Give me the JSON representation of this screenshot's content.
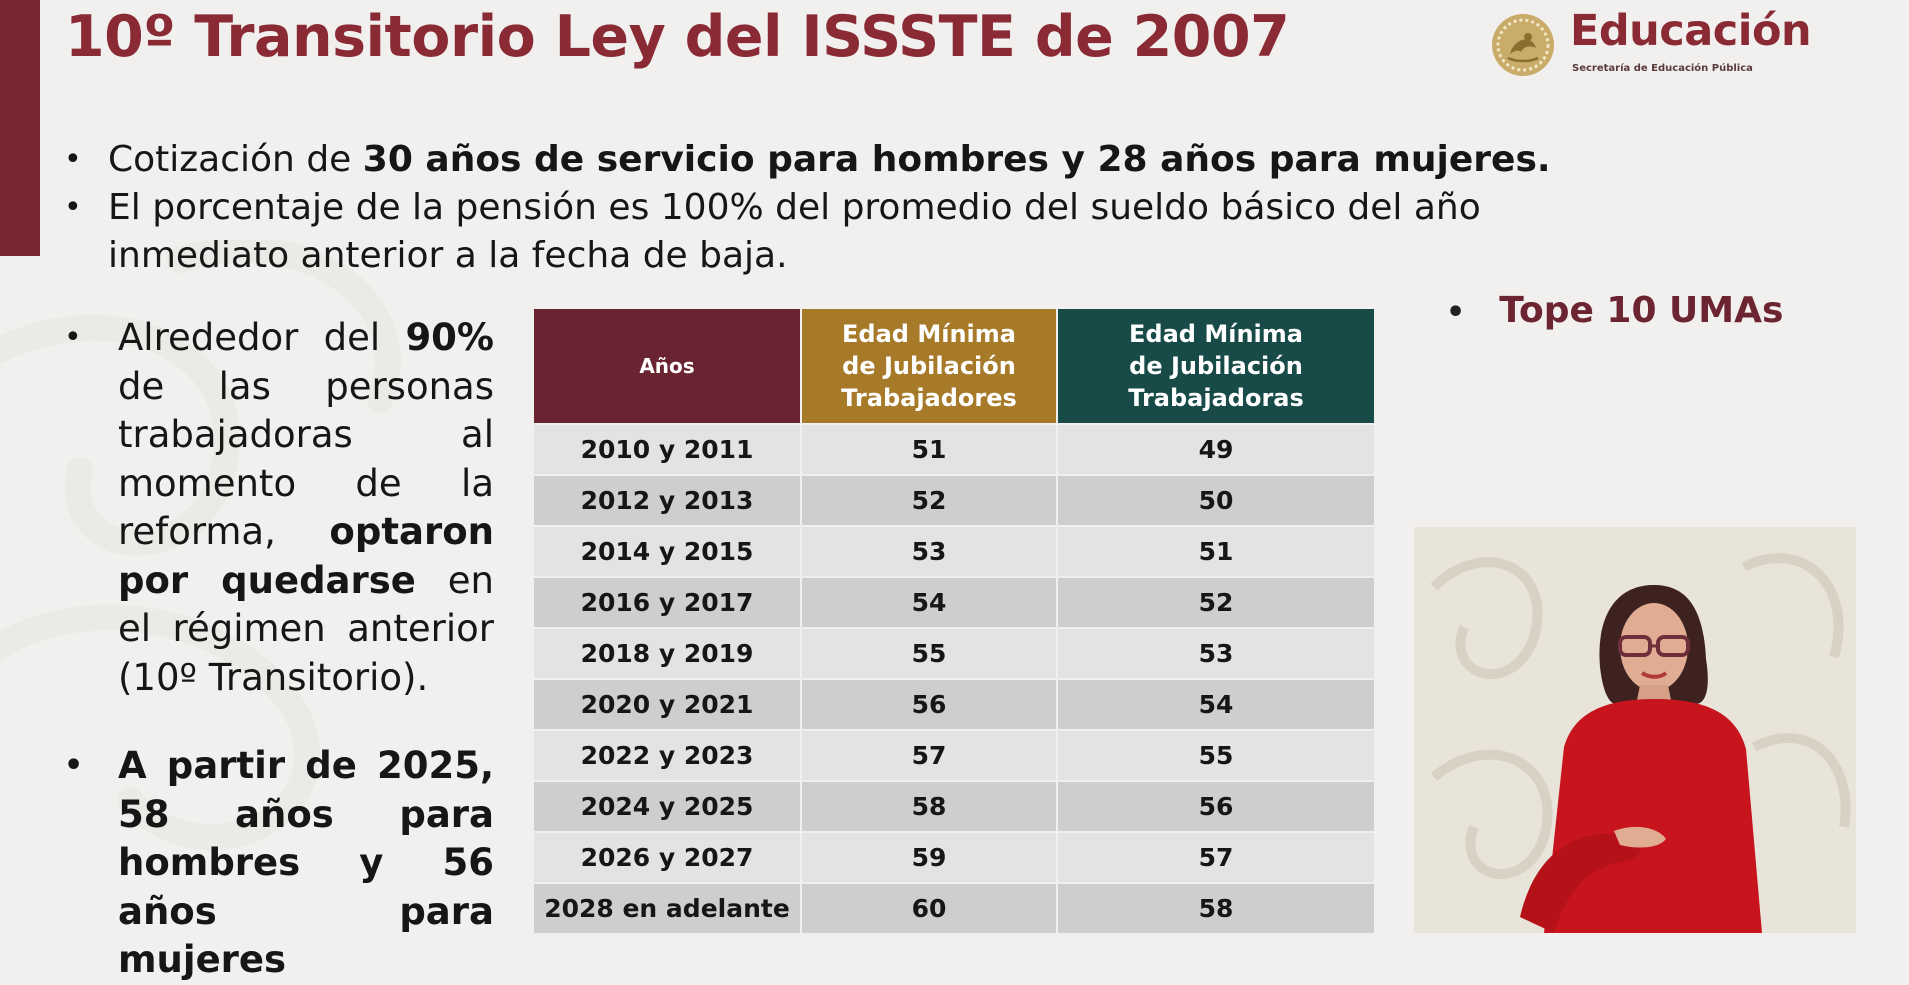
{
  "title": "10º Transitorio Ley del ISSSTE de 2007",
  "logo": {
    "word": "Educación",
    "subtitle": "Secretaría de Educación Pública"
  },
  "bullets_top": [
    {
      "prefix": "Cotización de ",
      "bold": "30 años de servicio para hombres y 28 años para mujeres."
    },
    {
      "line1": "El porcentaje de la pensión es 100% del promedio del sueldo básico del año",
      "line2": "inmediato anterior a la fecha de baja."
    }
  ],
  "left_bullets": {
    "first": {
      "part1": "Alrededor del ",
      "bold1": "90%",
      "part2": " de las personas trabajadoras al momento de la reforma, ",
      "bold2": "optaron por quedarse",
      "part3": " en el régimen anterior (10º Transitorio)."
    },
    "second": {
      "bold1": "A partir de 2025",
      "rest": ", 58 años para hombres y 56 años para mujeres"
    }
  },
  "table": {
    "headers": {
      "years": "Años",
      "men_l1": "Edad Mínima",
      "men_l2": "de Jubilación",
      "men_l3": "Trabajadores",
      "women_l1": "Edad Mínima",
      "women_l2": "de Jubilación",
      "women_l3": "Trabajadoras"
    },
    "header_colors": {
      "years": "#6a2431",
      "men": "#a77a2a",
      "women": "#184a48"
    },
    "rows": [
      {
        "years": "2010 y 2011",
        "men": "51",
        "women": "49"
      },
      {
        "years": "2012 y 2013",
        "men": "52",
        "women": "50"
      },
      {
        "years": "2014 y 2015",
        "men": "53",
        "women": "51"
      },
      {
        "years": "2016 y 2017",
        "men": "54",
        "women": "52"
      },
      {
        "years": "2018 y 2019",
        "men": "55",
        "women": "53"
      },
      {
        "years": "2020 y 2021",
        "men": "56",
        "women": "54"
      },
      {
        "years": "2022 y 2023",
        "men": "57",
        "women": "55"
      },
      {
        "years": "2024 y 2025",
        "men": "58",
        "women": "56"
      },
      {
        "years": "2026 y 2027",
        "men": "59",
        "women": "57"
      },
      {
        "years": "2028 en adelante",
        "men": "60",
        "women": "58"
      }
    ]
  },
  "tope": "Tope 10 UMAs",
  "accent_color": "#8a2a35"
}
